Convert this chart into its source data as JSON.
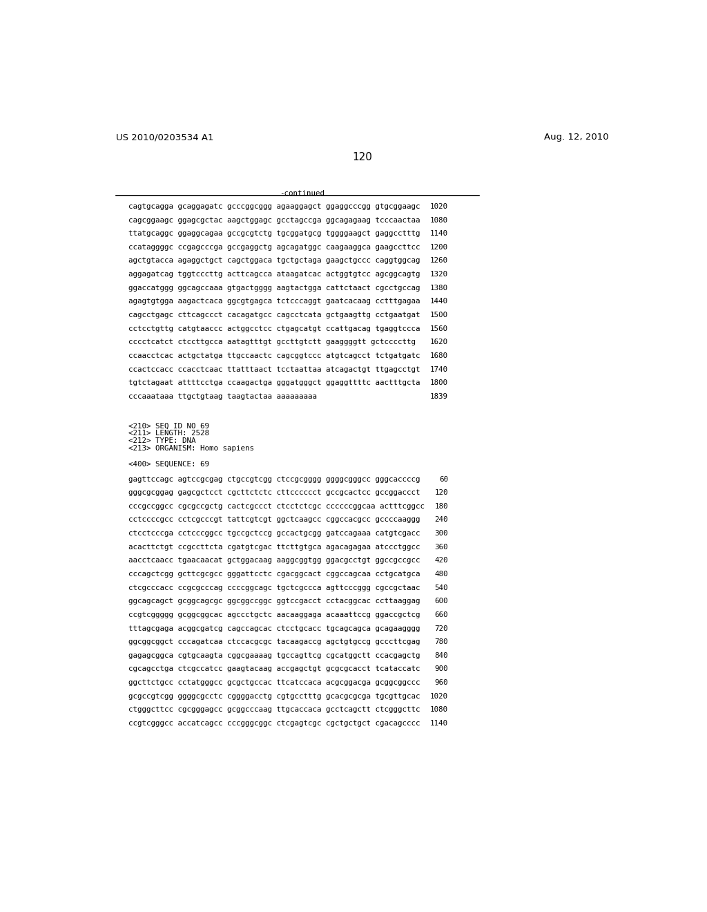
{
  "header_left": "US 2010/0203534 A1",
  "header_right": "Aug. 12, 2010",
  "page_number": "120",
  "continued_label": "-continued",
  "background_color": "#ffffff",
  "text_color": "#000000",
  "font_size_header": 9.5,
  "font_size_body": 7.8,
  "font_size_page": 11,
  "continued_lines": [
    [
      "cagtgcagga gcaggagatc gcccggcggg agaaggagct ggaggcccgg gtgcggaagc",
      "1020"
    ],
    [
      "cagcggaagc ggagcgctac aagctggagc gcctagccga ggcagagaag tcccaactaa",
      "1080"
    ],
    [
      "ttatgcaggc ggaggcagaa gccgcgtctg tgcggatgcg tggggaagct gaggcctttg",
      "1140"
    ],
    [
      "ccataggggc ccgagcccga gccgaggctg agcagatggc caagaaggca gaagccttcc",
      "1200"
    ],
    [
      "agctgtacca agaggctgct cagctggaca tgctgctaga gaagctgccc caggtggcag",
      "1260"
    ],
    [
      "aggagatcag tggtcccttg acttcagcca ataagatcac actggtgtcc agcggcagtg",
      "1320"
    ],
    [
      "ggaccatggg ggcagccaaa gtgactgggg aagtactgga cattctaact cgcctgccag",
      "1380"
    ],
    [
      "agagtgtgga aagactcaca ggcgtgagca tctcccaggt gaatcacaag cctttgagaa",
      "1440"
    ],
    [
      "cagcctgagc cttcagccct cacagatgcc cagcctcata gctgaagttg cctgaatgat",
      "1500"
    ],
    [
      "cctcctgttg catgtaaccc actggcctcc ctgagcatgt ccattgacag tgaggtccca",
      "1560"
    ],
    [
      "cccctcatct ctccttgcca aatagtttgt gccttgtctt gaaggggtt gctccccttg",
      "1620"
    ],
    [
      "ccaacctcac actgctatga ttgccaactc cagcggtccc atgtcagcct tctgatgatc",
      "1680"
    ],
    [
      "ccactccacc ccacctcaac ttatttaact tcctaattaa atcagactgt ttgagcctgt",
      "1740"
    ],
    [
      "tgtctagaat attttcctga ccaagactga gggatgggct ggaggttttc aactttgcta",
      "1800"
    ],
    [
      "cccaaataaa ttgctgtaag taagtactaa aaaaaaaaa",
      "1839"
    ]
  ],
  "seq_info": [
    "<210> SEQ ID NO 69",
    "<211> LENGTH: 2528",
    "<212> TYPE: DNA",
    "<213> ORGANISM: Homo sapiens"
  ],
  "seq_label": "<400> SEQUENCE: 69",
  "sequence_lines": [
    [
      "gagttccagc agtccgcgag ctgccgtcgg ctccgcgggg ggggcgggcc gggcaccccg",
      "60"
    ],
    [
      "gggcgcggag gagcgctcct cgcttctctc cttcccccct gccgcactcc gccggaccct",
      "120"
    ],
    [
      "cccgccggcc cgcgccgctg cactcgccct ctcctctcgc ccccccggcaa actttcggcc",
      "180"
    ],
    [
      "cctccccgcc cctcgcccgt tattcgtcgt ggctcaagcc cggccacgcc gccccaaggg",
      "240"
    ],
    [
      "ctcctcccga cctcccggcc tgccgctccg gccactgcgg gatccagaaa catgtcgacc",
      "300"
    ],
    [
      "acacttctgt ccgccttcta cgatgtcgac ttcttgtgca agacagagaa atccctggcc",
      "360"
    ],
    [
      "aacctcaacc tgaacaacat gctggacaag aaggcggtgg ggacgcctgt ggccgccgcc",
      "420"
    ],
    [
      "cccagctcgg gcttcgcgcc gggattcctc cgacggcact cggccagcaa cctgcatgca",
      "480"
    ],
    [
      "ctcgcccacc ccgcgcccag ccccggcagc tgctcgccca agttcccggg cgccgctaac",
      "540"
    ],
    [
      "ggcagcagct gcggcagcgc ggcggccggc ggtccgacct cctacggcac ccttaaggag",
      "600"
    ],
    [
      "ccgtcggggg gcggcggcac agccctgctc aacaaggaga acaaattccg ggaccgctcg",
      "660"
    ],
    [
      "tttagcgaga acggcgatcg cagccagcac ctcctgcacc tgcagcagca gcagaagggg",
      "720"
    ],
    [
      "ggcggcggct cccagatcaa ctccacgcgc tacaagaccg agctgtgccg gcccttcgag",
      "780"
    ],
    [
      "gagagcggca cgtgcaagta cggcgaaaag tgccagttcg cgcatggctt ccacgagctg",
      "840"
    ],
    [
      "cgcagcctga ctcgccatcc gaagtacaag accgagctgt gcgcgcacct tcataccatc",
      "900"
    ],
    [
      "ggcttctgcc cctatgggcc gcgctgccac ttcatccaca acgcggacga gcggcggccc",
      "960"
    ],
    [
      "gcgccgtcgg ggggcgcctc cggggacctg cgtgcctttg gcacgcgcga tgcgttgcac",
      "1020"
    ],
    [
      "ctgggcttcc cgcgggagcc gcggcccaag ttgcaccaca gcctcagctt ctcgggcttc",
      "1080"
    ],
    [
      "ccgtcgggcc accatcagcc cccgggcggc ctcgagtcgc cgctgctgct cgacagcccc",
      "1140"
    ]
  ]
}
